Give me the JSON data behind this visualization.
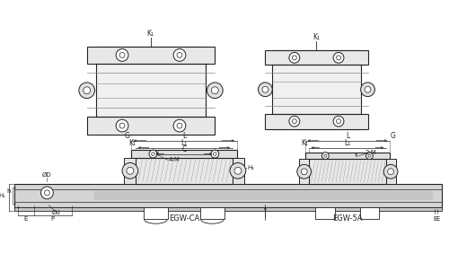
{
  "bg_color": "#ffffff",
  "lc": "#444444",
  "dc": "#222222",
  "mg": "#888888",
  "lg": "#bbbbbb",
  "labels": {
    "egw_ca": "EGW-CA",
    "egw_sa": "EGW-5A",
    "K1": "K₁",
    "L": "L",
    "L1": "L₁",
    "C": "C",
    "G": "G",
    "E": "E",
    "P": "P",
    "H": "Hₛ",
    "h": "h",
    "OD": "ØD",
    "Od": "Ød",
    "four_M": "4-M",
    "two_M": "2-M",
    "H1": "H₁"
  },
  "fs": 5.5
}
